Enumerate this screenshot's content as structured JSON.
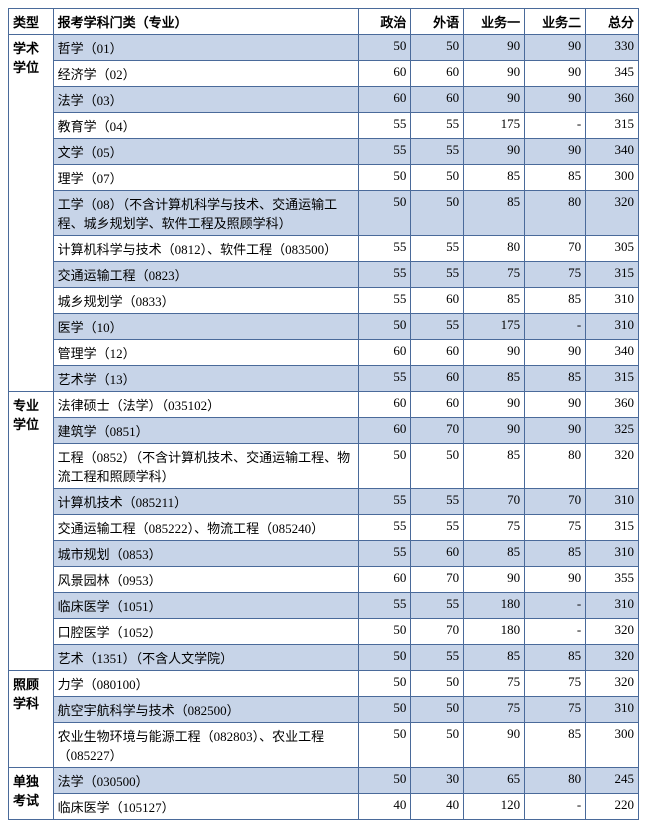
{
  "headers": {
    "type": "类型",
    "major": "报考学科门类（专业）",
    "politics": "政治",
    "foreign": "外语",
    "subj1": "业务一",
    "subj2": "业务二",
    "total": "总分"
  },
  "groups": [
    {
      "category": "学术学位",
      "rows": [
        {
          "major": "哲学（01）",
          "politics": "50",
          "foreign": "50",
          "subj1": "90",
          "subj2": "90",
          "total": "330",
          "shade": true
        },
        {
          "major": "经济学（02）",
          "politics": "60",
          "foreign": "60",
          "subj1": "90",
          "subj2": "90",
          "total": "345",
          "shade": false
        },
        {
          "major": "法学（03）",
          "politics": "60",
          "foreign": "60",
          "subj1": "90",
          "subj2": "90",
          "total": "360",
          "shade": true
        },
        {
          "major": "教育学（04）",
          "politics": "55",
          "foreign": "55",
          "subj1": "175",
          "subj2": "-",
          "total": "315",
          "shade": false
        },
        {
          "major": "文学（05）",
          "politics": "55",
          "foreign": "55",
          "subj1": "90",
          "subj2": "90",
          "total": "340",
          "shade": true
        },
        {
          "major": "理学（07）",
          "politics": "50",
          "foreign": "50",
          "subj1": "85",
          "subj2": "85",
          "total": "300",
          "shade": false
        },
        {
          "major": "工学（08）（不含计算机科学与技术、交通运输工程、城乡规划学、软件工程及照顾学科）",
          "politics": "50",
          "foreign": "50",
          "subj1": "85",
          "subj2": "80",
          "total": "320",
          "shade": true
        },
        {
          "major": "计算机科学与技术（0812）、软件工程（083500）",
          "politics": "55",
          "foreign": "55",
          "subj1": "80",
          "subj2": "70",
          "total": "305",
          "shade": false
        },
        {
          "major": "交通运输工程（0823）",
          "politics": "55",
          "foreign": "55",
          "subj1": "75",
          "subj2": "75",
          "total": "315",
          "shade": true
        },
        {
          "major": "城乡规划学（0833）",
          "politics": "55",
          "foreign": "60",
          "subj1": "85",
          "subj2": "85",
          "total": "310",
          "shade": false
        },
        {
          "major": "医学（10）",
          "politics": "50",
          "foreign": "55",
          "subj1": "175",
          "subj2": "-",
          "total": "310",
          "shade": true
        },
        {
          "major": "管理学（12）",
          "politics": "60",
          "foreign": "60",
          "subj1": "90",
          "subj2": "90",
          "total": "340",
          "shade": false
        },
        {
          "major": "艺术学（13）",
          "politics": "55",
          "foreign": "60",
          "subj1": "85",
          "subj2": "85",
          "total": "315",
          "shade": true
        }
      ]
    },
    {
      "category": "专业学位",
      "rows": [
        {
          "major": "法律硕士（法学）（035102）",
          "politics": "60",
          "foreign": "60",
          "subj1": "90",
          "subj2": "90",
          "total": "360",
          "shade": false
        },
        {
          "major": "建筑学（0851）",
          "politics": "60",
          "foreign": "70",
          "subj1": "90",
          "subj2": "90",
          "total": "325",
          "shade": true
        },
        {
          "major": "工程（0852）（不含计算机技术、交通运输工程、物流工程和照顾学科）",
          "politics": "50",
          "foreign": "50",
          "subj1": "85",
          "subj2": "80",
          "total": "320",
          "shade": false
        },
        {
          "major": "计算机技术（085211）",
          "politics": "55",
          "foreign": "55",
          "subj1": "70",
          "subj2": "70",
          "total": "310",
          "shade": true
        },
        {
          "major": "交通运输工程（085222）、物流工程（085240）",
          "politics": "55",
          "foreign": "55",
          "subj1": "75",
          "subj2": "75",
          "total": "315",
          "shade": false
        },
        {
          "major": "城市规划（0853）",
          "politics": "55",
          "foreign": "60",
          "subj1": "85",
          "subj2": "85",
          "total": "310",
          "shade": true
        },
        {
          "major": "风景园林（0953）",
          "politics": "60",
          "foreign": "70",
          "subj1": "90",
          "subj2": "90",
          "total": "355",
          "shade": false
        },
        {
          "major": "临床医学（1051）",
          "politics": "55",
          "foreign": "55",
          "subj1": "180",
          "subj2": "-",
          "total": "310",
          "shade": true
        },
        {
          "major": "口腔医学（1052）",
          "politics": "50",
          "foreign": "70",
          "subj1": "180",
          "subj2": "-",
          "total": "320",
          "shade": false
        },
        {
          "major": "艺术（1351）（不含人文学院）",
          "politics": "50",
          "foreign": "55",
          "subj1": "85",
          "subj2": "85",
          "total": "320",
          "shade": true
        }
      ]
    },
    {
      "category": "照顾学科",
      "rows": [
        {
          "major": "力学（080100）",
          "politics": "50",
          "foreign": "50",
          "subj1": "75",
          "subj2": "75",
          "total": "320",
          "shade": false
        },
        {
          "major": "航空宇航科学与技术（082500）",
          "politics": "50",
          "foreign": "50",
          "subj1": "75",
          "subj2": "75",
          "total": "310",
          "shade": true
        },
        {
          "major": "农业生物环境与能源工程（082803）、农业工程（085227）",
          "politics": "50",
          "foreign": "50",
          "subj1": "90",
          "subj2": "85",
          "total": "300",
          "shade": false
        }
      ]
    },
    {
      "category": "单独考试",
      "rows": [
        {
          "major": "法学（030500）",
          "politics": "50",
          "foreign": "30",
          "subj1": "65",
          "subj2": "80",
          "total": "245",
          "shade": true
        },
        {
          "major": "临床医学（105127）",
          "politics": "40",
          "foreign": "40",
          "subj1": "120",
          "subj2": "-",
          "total": "220",
          "shade": false
        }
      ]
    }
  ]
}
